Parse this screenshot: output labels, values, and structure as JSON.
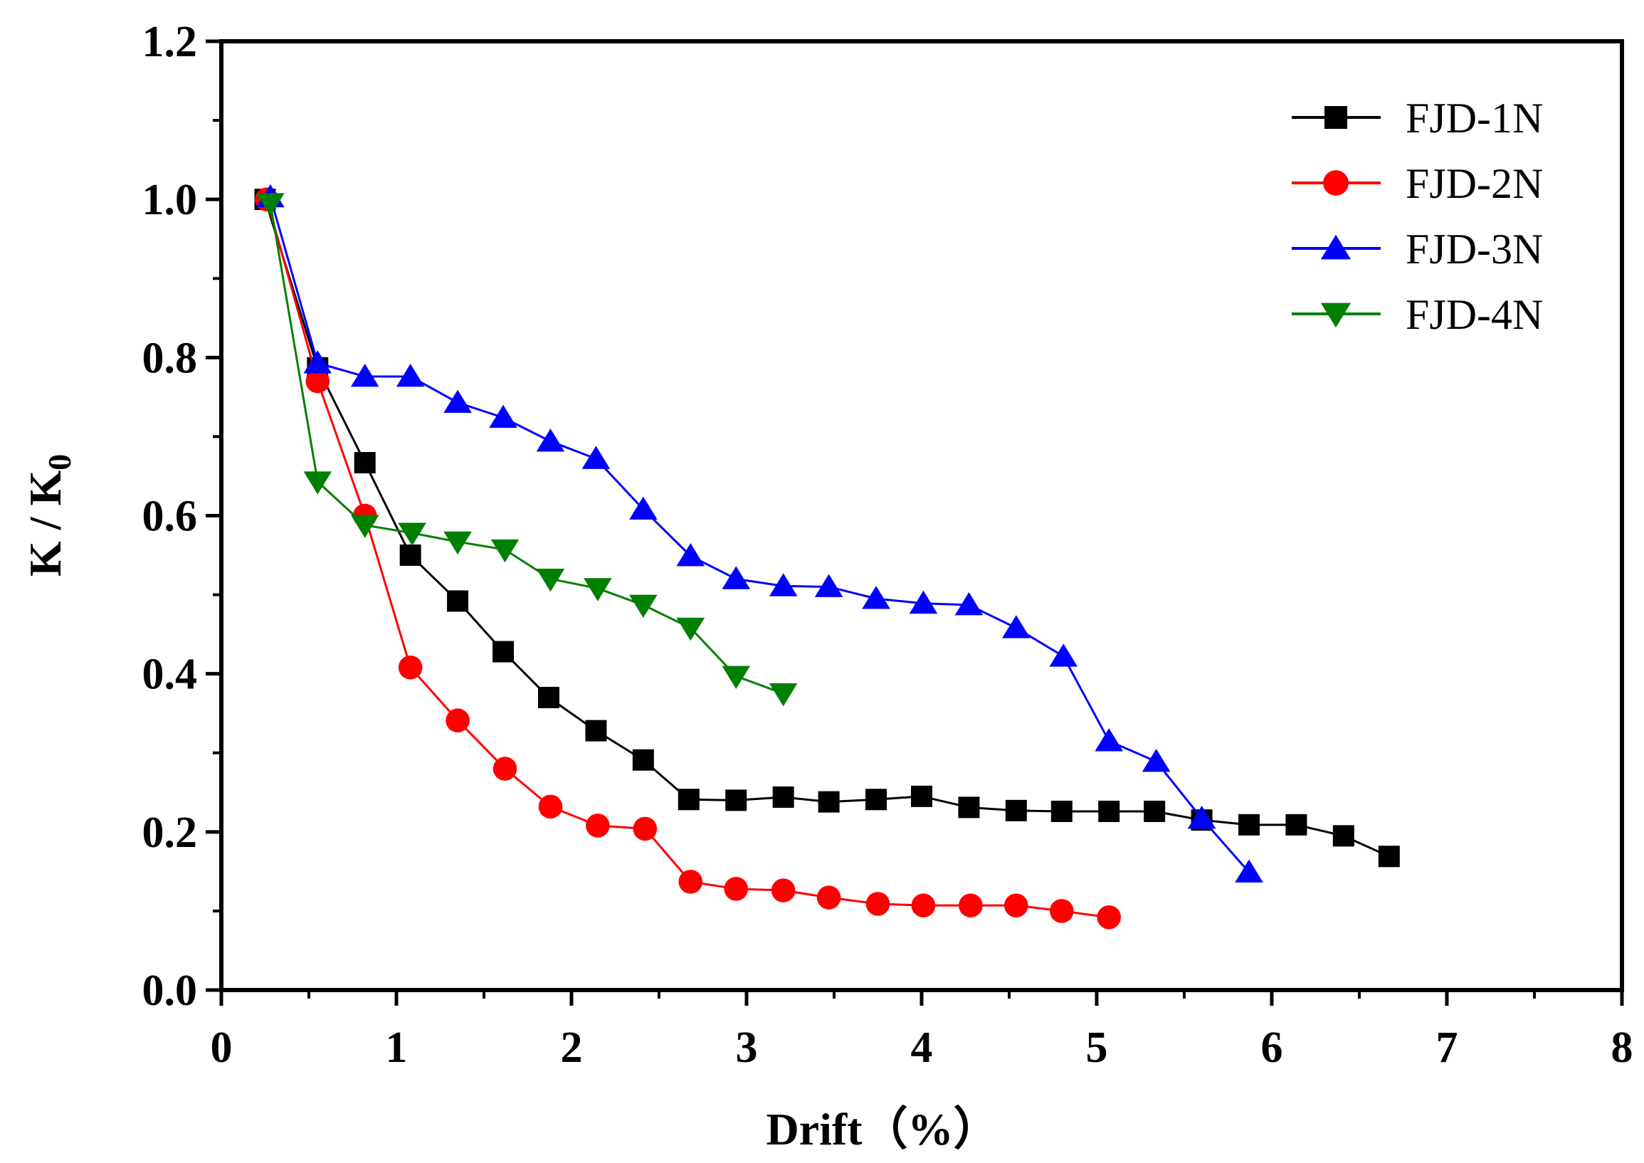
{
  "chart_data": {
    "type": "line",
    "title": "",
    "xlabel": "Drift（%）",
    "ylabel": "K / K",
    "ylabel_subscript": "0",
    "xlim": [
      0,
      8
    ],
    "ylim": [
      0,
      1.2
    ],
    "x_ticks": [
      "0",
      "1",
      "2",
      "3",
      "4",
      "5",
      "6",
      "7",
      "8"
    ],
    "y_ticks": [
      "0.0",
      "0.2",
      "0.4",
      "0.6",
      "0.8",
      "1.0",
      "1.2"
    ],
    "grid": false,
    "legend_position": "top-right",
    "series": [
      {
        "name": "FJD-1N",
        "color": "#000000",
        "marker": "square",
        "x": [
          0.25,
          0.55,
          0.82,
          1.08,
          1.35,
          1.61,
          1.87,
          2.14,
          2.41,
          2.67,
          2.94,
          3.21,
          3.47,
          3.74,
          4.0,
          4.27,
          4.54,
          4.8,
          5.07,
          5.33,
          5.6,
          5.87,
          6.14,
          6.41,
          6.67
        ],
        "y": [
          1.0,
          0.787,
          0.667,
          0.55,
          0.492,
          0.428,
          0.37,
          0.328,
          0.291,
          0.241,
          0.24,
          0.244,
          0.238,
          0.241,
          0.245,
          0.231,
          0.227,
          0.226,
          0.226,
          0.226,
          0.215,
          0.209,
          0.209,
          0.195,
          0.169
        ]
      },
      {
        "name": "FJD-2N",
        "color": "#ff0000",
        "marker": "circle",
        "x": [
          0.26,
          0.55,
          0.82,
          1.08,
          1.35,
          1.62,
          1.88,
          2.15,
          2.42,
          2.68,
          2.94,
          3.21,
          3.47,
          3.75,
          4.01,
          4.28,
          4.54,
          4.8,
          5.07
        ],
        "y": [
          1.0,
          0.77,
          0.6,
          0.408,
          0.341,
          0.28,
          0.232,
          0.208,
          0.204,
          0.137,
          0.128,
          0.126,
          0.117,
          0.109,
          0.107,
          0.107,
          0.107,
          0.1,
          0.092
        ]
      },
      {
        "name": "FJD-3N",
        "color": "#0000ff",
        "marker": "triangle-up",
        "x": [
          0.28,
          0.55,
          0.82,
          1.08,
          1.35,
          1.61,
          1.88,
          2.14,
          2.41,
          2.68,
          2.94,
          3.21,
          3.47,
          3.74,
          4.01,
          4.27,
          4.54,
          4.81,
          5.07,
          5.34,
          5.6,
          5.87
        ],
        "y": [
          1.003,
          0.793,
          0.776,
          0.776,
          0.743,
          0.724,
          0.694,
          0.672,
          0.608,
          0.549,
          0.52,
          0.511,
          0.51,
          0.495,
          0.489,
          0.487,
          0.458,
          0.422,
          0.315,
          0.289,
          0.217,
          0.149
        ]
      },
      {
        "name": "FJD-4N",
        "color": "#008000",
        "marker": "triangle-down",
        "x": [
          0.28,
          0.55,
          0.82,
          1.09,
          1.35,
          1.62,
          1.88,
          2.15,
          2.41,
          2.68,
          2.94,
          3.21
        ],
        "y": [
          0.995,
          0.643,
          0.588,
          0.578,
          0.567,
          0.557,
          0.52,
          0.508,
          0.487,
          0.458,
          0.397,
          0.375
        ]
      }
    ]
  }
}
